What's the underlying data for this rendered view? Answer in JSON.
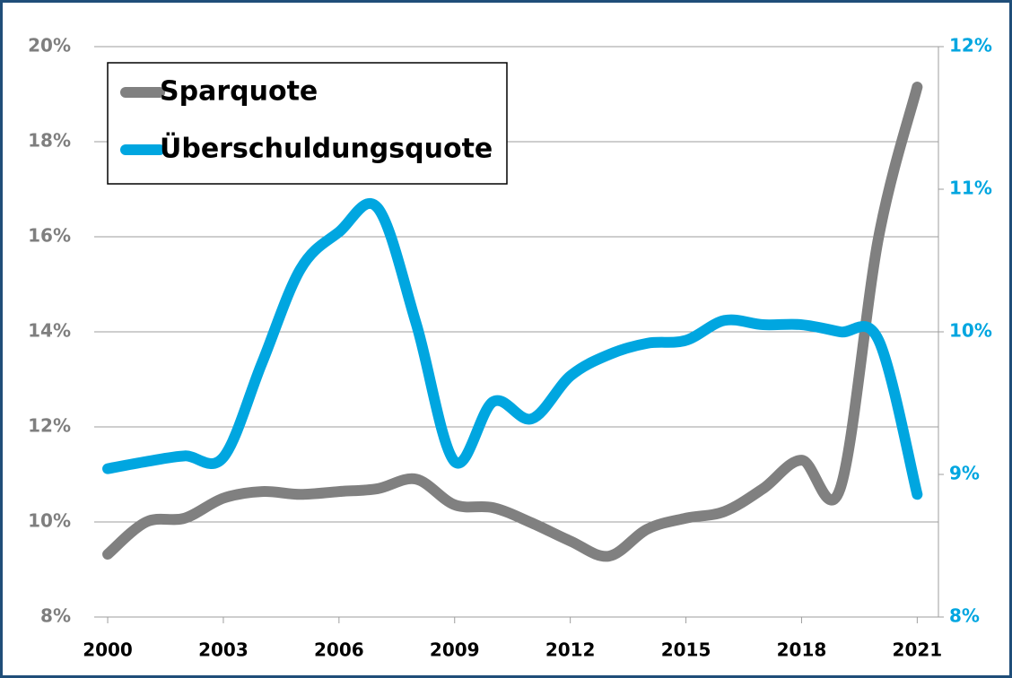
{
  "chart_data": {
    "type": "line",
    "x": [
      2000,
      2001,
      2002,
      2003,
      2004,
      2005,
      2006,
      2007,
      2008,
      2009,
      2010,
      2011,
      2012,
      2013,
      2014,
      2015,
      2016,
      2017,
      2018,
      2019,
      2020,
      2021
    ],
    "series": [
      {
        "name": "Sparquote",
        "color": "#808080",
        "values": [
          9.32,
          10.0,
          10.08,
          10.5,
          10.64,
          10.58,
          10.64,
          10.7,
          10.9,
          10.36,
          10.3,
          9.98,
          9.6,
          9.28,
          9.85,
          10.08,
          10.22,
          10.7,
          11.3,
          10.7,
          16.0,
          19.15
        ]
      },
      {
        "name": "Überschuldungsquote",
        "color": "#00a6e0",
        "axis": "y2",
        "values": [
          9.04,
          9.09,
          9.13,
          9.12,
          9.78,
          10.44,
          10.7,
          10.87,
          10.06,
          9.09,
          9.51,
          9.39,
          9.69,
          9.84,
          9.92,
          9.94,
          10.08,
          10.05,
          10.05,
          10.0,
          9.94,
          8.86
        ]
      }
    ],
    "xlim": [
      1999.65,
      2021.55
    ],
    "xticks": [
      2000,
      2003,
      2006,
      2009,
      2012,
      2015,
      2018,
      2021
    ],
    "ylim": [
      8,
      20
    ],
    "yticks": [
      {
        "value": 8,
        "label": "8%"
      },
      {
        "value": 10,
        "label": "10%"
      },
      {
        "value": 12,
        "label": "12%"
      },
      {
        "value": 14,
        "label": "14%"
      },
      {
        "value": 16,
        "label": "16%"
      },
      {
        "value": 18,
        "label": "18%"
      },
      {
        "value": 20,
        "label": "20%"
      }
    ],
    "y2lim": [
      8,
      12
    ],
    "y2ticks": [
      {
        "value": 8,
        "label": "8%"
      },
      {
        "value": 9,
        "label": "9%"
      },
      {
        "value": 10,
        "label": "10%"
      },
      {
        "value": 11,
        "label": "11%"
      },
      {
        "value": 12,
        "label": "12%"
      }
    ],
    "grid": true,
    "legend": "upper left"
  }
}
